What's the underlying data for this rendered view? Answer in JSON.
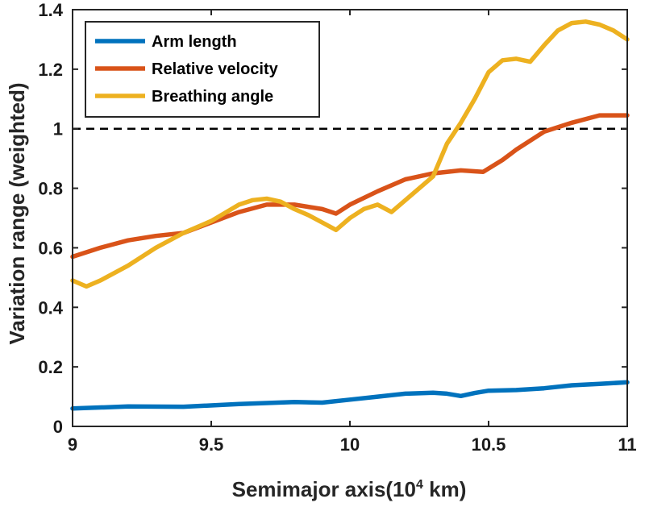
{
  "chart_data": {
    "type": "line",
    "xlabel": "Semimajor axis(10",
    "xlabel_sup": "4",
    "xlabel_suffix": " km)",
    "ylabel": "Variation range (weighted)",
    "xlim": [
      9,
      11
    ],
    "ylim": [
      0,
      1.4
    ],
    "x_ticks": [
      9,
      9.5,
      10,
      10.5,
      11
    ],
    "x_tick_labels": [
      "9",
      "9.5",
      "10",
      "10.5",
      "11"
    ],
    "y_ticks": [
      0,
      0.2,
      0.4,
      0.6,
      0.8,
      1,
      1.2,
      1.4
    ],
    "y_tick_labels": [
      "0",
      "0.2",
      "0.4",
      "0.6",
      "0.8",
      "1",
      "1.2",
      "1.4"
    ],
    "grid": false,
    "legend_position": "top-left",
    "reference_line": {
      "y": 1,
      "style": "dashed",
      "color": "#000000"
    },
    "series": [
      {
        "name": "Arm length",
        "color": "#0072BD",
        "x": [
          9.0,
          9.2,
          9.4,
          9.6,
          9.8,
          9.9,
          10.0,
          10.1,
          10.2,
          10.3,
          10.35,
          10.4,
          10.45,
          10.5,
          10.6,
          10.7,
          10.8,
          10.9,
          11.0
        ],
        "y": [
          0.06,
          0.067,
          0.066,
          0.075,
          0.082,
          0.08,
          0.09,
          0.1,
          0.11,
          0.113,
          0.11,
          0.102,
          0.112,
          0.12,
          0.122,
          0.128,
          0.138,
          0.143,
          0.148
        ]
      },
      {
        "name": "Relative velocity",
        "color": "#D95319",
        "x": [
          9.0,
          9.1,
          9.2,
          9.3,
          9.4,
          9.5,
          9.6,
          9.7,
          9.8,
          9.9,
          9.95,
          10.0,
          10.1,
          10.2,
          10.3,
          10.4,
          10.48,
          10.55,
          10.6,
          10.7,
          10.8,
          10.9,
          11.0
        ],
        "y": [
          0.57,
          0.6,
          0.625,
          0.64,
          0.65,
          0.685,
          0.72,
          0.745,
          0.745,
          0.73,
          0.715,
          0.745,
          0.79,
          0.83,
          0.85,
          0.86,
          0.855,
          0.895,
          0.93,
          0.99,
          1.02,
          1.045,
          1.045
        ]
      },
      {
        "name": "Breathing angle",
        "color": "#EDB120",
        "x": [
          9.0,
          9.05,
          9.1,
          9.2,
          9.3,
          9.4,
          9.5,
          9.6,
          9.65,
          9.7,
          9.75,
          9.8,
          9.85,
          9.9,
          9.95,
          10.0,
          10.05,
          10.1,
          10.15,
          10.2,
          10.3,
          10.35,
          10.4,
          10.45,
          10.5,
          10.55,
          10.6,
          10.65,
          10.7,
          10.75,
          10.8,
          10.85,
          10.9,
          10.95,
          11.0
        ],
        "y": [
          0.49,
          0.47,
          0.49,
          0.54,
          0.6,
          0.65,
          0.69,
          0.745,
          0.76,
          0.765,
          0.755,
          0.73,
          0.71,
          0.685,
          0.66,
          0.7,
          0.73,
          0.745,
          0.72,
          0.76,
          0.84,
          0.95,
          1.02,
          1.1,
          1.19,
          1.23,
          1.235,
          1.225,
          1.28,
          1.33,
          1.355,
          1.36,
          1.35,
          1.33,
          1.3
        ]
      }
    ]
  }
}
